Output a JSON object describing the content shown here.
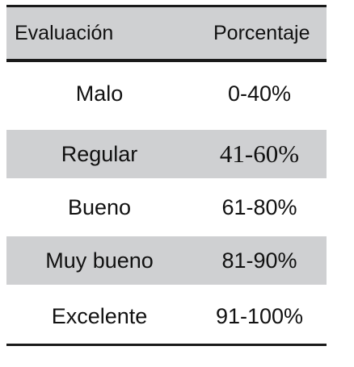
{
  "header": {
    "col1": "Evaluación",
    "col2": "Porcentaje"
  },
  "rows": [
    {
      "evaluacion": "Malo",
      "porcentaje": "0-40%"
    },
    {
      "evaluacion": "Regular",
      "porcentaje": "41-60%"
    },
    {
      "evaluacion": "Bueno",
      "porcentaje": "61-80%"
    },
    {
      "evaluacion": "Muy bueno",
      "porcentaje": "81-90%"
    },
    {
      "evaluacion": "Excelente",
      "porcentaje": "91-100%"
    }
  ],
  "colors": {
    "header_bg": "#cfd0d2",
    "shaded_row_bg": "#cfd0d2",
    "rule": "#1a1a1a"
  }
}
